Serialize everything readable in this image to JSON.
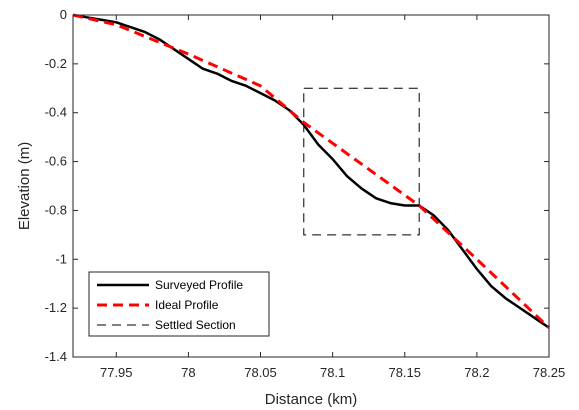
{
  "chart_data": {
    "type": "line",
    "title": "",
    "xlabel": "Distance (km)",
    "ylabel": "Elevation (m)",
    "xlim": [
      77.92,
      78.25
    ],
    "ylim": [
      -1.4,
      0
    ],
    "xticks": [
      77.95,
      78,
      78.05,
      78.1,
      78.15,
      78.2,
      78.25
    ],
    "xtick_labels": [
      "77.95",
      "78",
      "78.05",
      "78.1",
      "78.15",
      "78.2",
      "78.25"
    ],
    "yticks": [
      0,
      -0.2,
      -0.4,
      -0.6,
      -0.8,
      -1,
      -1.2,
      -1.4
    ],
    "ytick_labels": [
      "0",
      "-0.2",
      "-0.4",
      "-0.6",
      "-0.8",
      "-1",
      "-1.2",
      "-1.4"
    ],
    "grid": false,
    "legend_position": "bottom-left",
    "series": [
      {
        "name": "Surveyed Profile",
        "color": "#000000",
        "style": "solid",
        "x": [
          77.92,
          77.93,
          77.94,
          77.95,
          77.96,
          77.97,
          77.98,
          77.99,
          78.0,
          78.01,
          78.02,
          78.03,
          78.04,
          78.05,
          78.06,
          78.07,
          78.08,
          78.09,
          78.1,
          78.11,
          78.12,
          78.13,
          78.14,
          78.15,
          78.16,
          78.17,
          78.18,
          78.19,
          78.2,
          78.21,
          78.22,
          78.23,
          78.24,
          78.25
        ],
        "y": [
          0.0,
          -0.01,
          -0.02,
          -0.03,
          -0.05,
          -0.07,
          -0.1,
          -0.14,
          -0.18,
          -0.22,
          -0.24,
          -0.27,
          -0.29,
          -0.32,
          -0.35,
          -0.39,
          -0.45,
          -0.53,
          -0.59,
          -0.66,
          -0.71,
          -0.75,
          -0.77,
          -0.78,
          -0.78,
          -0.82,
          -0.88,
          -0.96,
          -1.04,
          -1.11,
          -1.16,
          -1.2,
          -1.24,
          -1.28
        ]
      },
      {
        "name": "Ideal Profile",
        "color": "#ff0000",
        "style": "dashed",
        "x": [
          77.92,
          77.95,
          78.0,
          78.05,
          78.08,
          78.16,
          78.2,
          78.25
        ],
        "y": [
          0.0,
          -0.04,
          -0.16,
          -0.29,
          -0.44,
          -0.78,
          -1.0,
          -1.28
        ]
      }
    ],
    "legend": [
      {
        "label": "Surveyed Profile",
        "color": "#000000",
        "style": "solid"
      },
      {
        "label": "Ideal Profile",
        "color": "#ff0000",
        "style": "dashed"
      },
      {
        "label": "Settled Section",
        "color": "#000000",
        "style": "dashed-thin"
      }
    ],
    "annotation": {
      "name": "Settled Section",
      "type": "dashed-rectangle",
      "x_range": [
        78.08,
        78.16
      ],
      "y_range": [
        -0.9,
        -0.3
      ]
    }
  }
}
